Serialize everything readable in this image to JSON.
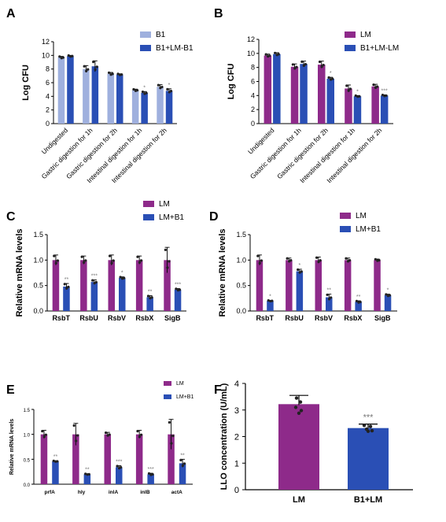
{
  "colors": {
    "b1": "#9fb0de",
    "blue": "#2a4fb5",
    "magenta": "#8e2a8a",
    "axis": "#000000",
    "dot": "#222222",
    "star": "#777777"
  },
  "panels": {
    "A": "A",
    "B": "B",
    "C": "C",
    "D": "D",
    "E": "E",
    "F": "F"
  },
  "chart_data": [
    {
      "panel": "A",
      "type": "bar",
      "ylabel": "Log CFU",
      "ylim": [
        0,
        12
      ],
      "yticks": [
        0,
        2,
        4,
        6,
        8,
        10,
        12
      ],
      "categories": [
        "Undigested",
        "Gastric digestion for 1h",
        "Gastric digestion for 2h",
        "Intestinal digestion for 1h",
        "Intestinal digestion for 2h"
      ],
      "series": [
        {
          "name": "B1",
          "values": [
            9.7,
            8.0,
            7.3,
            4.9,
            5.4
          ],
          "errors": [
            0.15,
            0.5,
            0.2,
            0.15,
            0.3
          ]
        },
        {
          "name": "B1+LM-B1",
          "values": [
            9.9,
            8.4,
            7.2,
            4.5,
            4.8
          ],
          "errors": [
            0.1,
            0.8,
            0.1,
            0.2,
            0.3
          ]
        }
      ],
      "stars": [
        [
          "",
          "",
          "",
          "",
          ""
        ],
        [
          "",
          "",
          "",
          "*",
          "*"
        ]
      ],
      "legend": "top-right"
    },
    {
      "panel": "B",
      "type": "bar",
      "ylabel": "Log CFU",
      "ylim": [
        0,
        12
      ],
      "yticks": [
        0,
        2,
        4,
        6,
        8,
        10,
        12
      ],
      "categories": [
        "Undigested",
        "Gastric digestion for 1h",
        "Gastric digestion for 2h",
        "Intestinal digestion for 1h",
        "Intestinal digestion for 2h"
      ],
      "series": [
        {
          "name": "LM",
          "values": [
            9.7,
            8.1,
            8.4,
            5.0,
            5.3
          ],
          "errors": [
            0.2,
            0.4,
            0.5,
            0.5,
            0.3
          ]
        },
        {
          "name": "B1+LM-LM",
          "values": [
            9.9,
            8.5,
            6.4,
            3.9,
            4.0
          ],
          "errors": [
            0.2,
            0.4,
            0.2,
            0.1,
            0.1
          ]
        }
      ],
      "stars": [
        [
          "",
          "",
          "",
          "",
          ""
        ],
        [
          "",
          "",
          "*",
          "*",
          "***"
        ]
      ],
      "legend": "top-right"
    },
    {
      "panel": "C",
      "type": "bar",
      "ylabel": "Relative mRNA levels",
      "ylim": [
        0,
        1.5
      ],
      "yticks": [
        0.0,
        0.5,
        1.0,
        1.5
      ],
      "categories": [
        "RsbT",
        "RsbU",
        "RsbV",
        "RsbX",
        "SigB"
      ],
      "series": [
        {
          "name": "LM",
          "values": [
            1.0,
            1.0,
            1.0,
            1.0,
            1.0
          ],
          "errors": [
            0.1,
            0.08,
            0.1,
            0.08,
            0.25
          ]
        },
        {
          "name": "LM+B1",
          "values": [
            0.48,
            0.57,
            0.65,
            0.27,
            0.42
          ],
          "errors": [
            0.06,
            0.04,
            0.02,
            0.03,
            0.02
          ]
        }
      ],
      "stars": [
        [
          "",
          "",
          "",
          "",
          ""
        ],
        [
          "**",
          "***",
          "*",
          "**",
          "***"
        ]
      ],
      "legend": "top-right"
    },
    {
      "panel": "D",
      "type": "bar",
      "ylabel": "Relative mRNA levels",
      "ylim": [
        0,
        1.5
      ],
      "yticks": [
        0.0,
        0.5,
        1.0,
        1.5
      ],
      "categories": [
        "RsbT",
        "RsbU",
        "RsbV",
        "RsbX",
        "SigB"
      ],
      "series": [
        {
          "name": "LM",
          "values": [
            1.0,
            1.0,
            1.0,
            1.0,
            1.0
          ],
          "errors": [
            0.1,
            0.04,
            0.06,
            0.04,
            0.02
          ]
        },
        {
          "name": "LM+B1",
          "values": [
            0.2,
            0.78,
            0.27,
            0.18,
            0.31
          ],
          "errors": [
            0.01,
            0.04,
            0.06,
            0.02,
            0.02
          ]
        }
      ],
      "stars": [
        [
          "",
          "",
          "",
          "",
          ""
        ],
        [
          "*",
          "*",
          "**",
          "**",
          "*"
        ]
      ],
      "legend": "top-right"
    },
    {
      "panel": "E",
      "type": "bar",
      "ylabel": "Relative mRNA levels",
      "ylim": [
        0,
        1.5
      ],
      "yticks": [
        0.0,
        0.5,
        1.0,
        1.5
      ],
      "categories": [
        "prfA",
        "hly",
        "inlA",
        "inlB",
        "actA"
      ],
      "series": [
        {
          "name": "LM",
          "values": [
            1.0,
            1.0,
            1.0,
            1.0,
            1.0
          ],
          "errors": [
            0.08,
            0.22,
            0.04,
            0.08,
            0.3
          ]
        },
        {
          "name": "LM+B1",
          "values": [
            0.46,
            0.2,
            0.34,
            0.2,
            0.42
          ],
          "errors": [
            0.01,
            0.01,
            0.03,
            0.02,
            0.08
          ]
        }
      ],
      "stars": [
        [
          "",
          "",
          "",
          "",
          ""
        ],
        [
          "**",
          "**",
          "***",
          "***",
          "**"
        ]
      ],
      "legend": "top-right"
    },
    {
      "panel": "F",
      "type": "bar",
      "ylabel": "LLO concentration (U/mL)",
      "ylim": [
        0,
        4
      ],
      "yticks": [
        0,
        1,
        2,
        3,
        4
      ],
      "categories": [
        "LM",
        "B1+LM"
      ],
      "values": [
        3.22,
        2.32
      ],
      "errors": [
        0.33,
        0.15
      ],
      "stars": [
        "",
        "***"
      ]
    }
  ]
}
